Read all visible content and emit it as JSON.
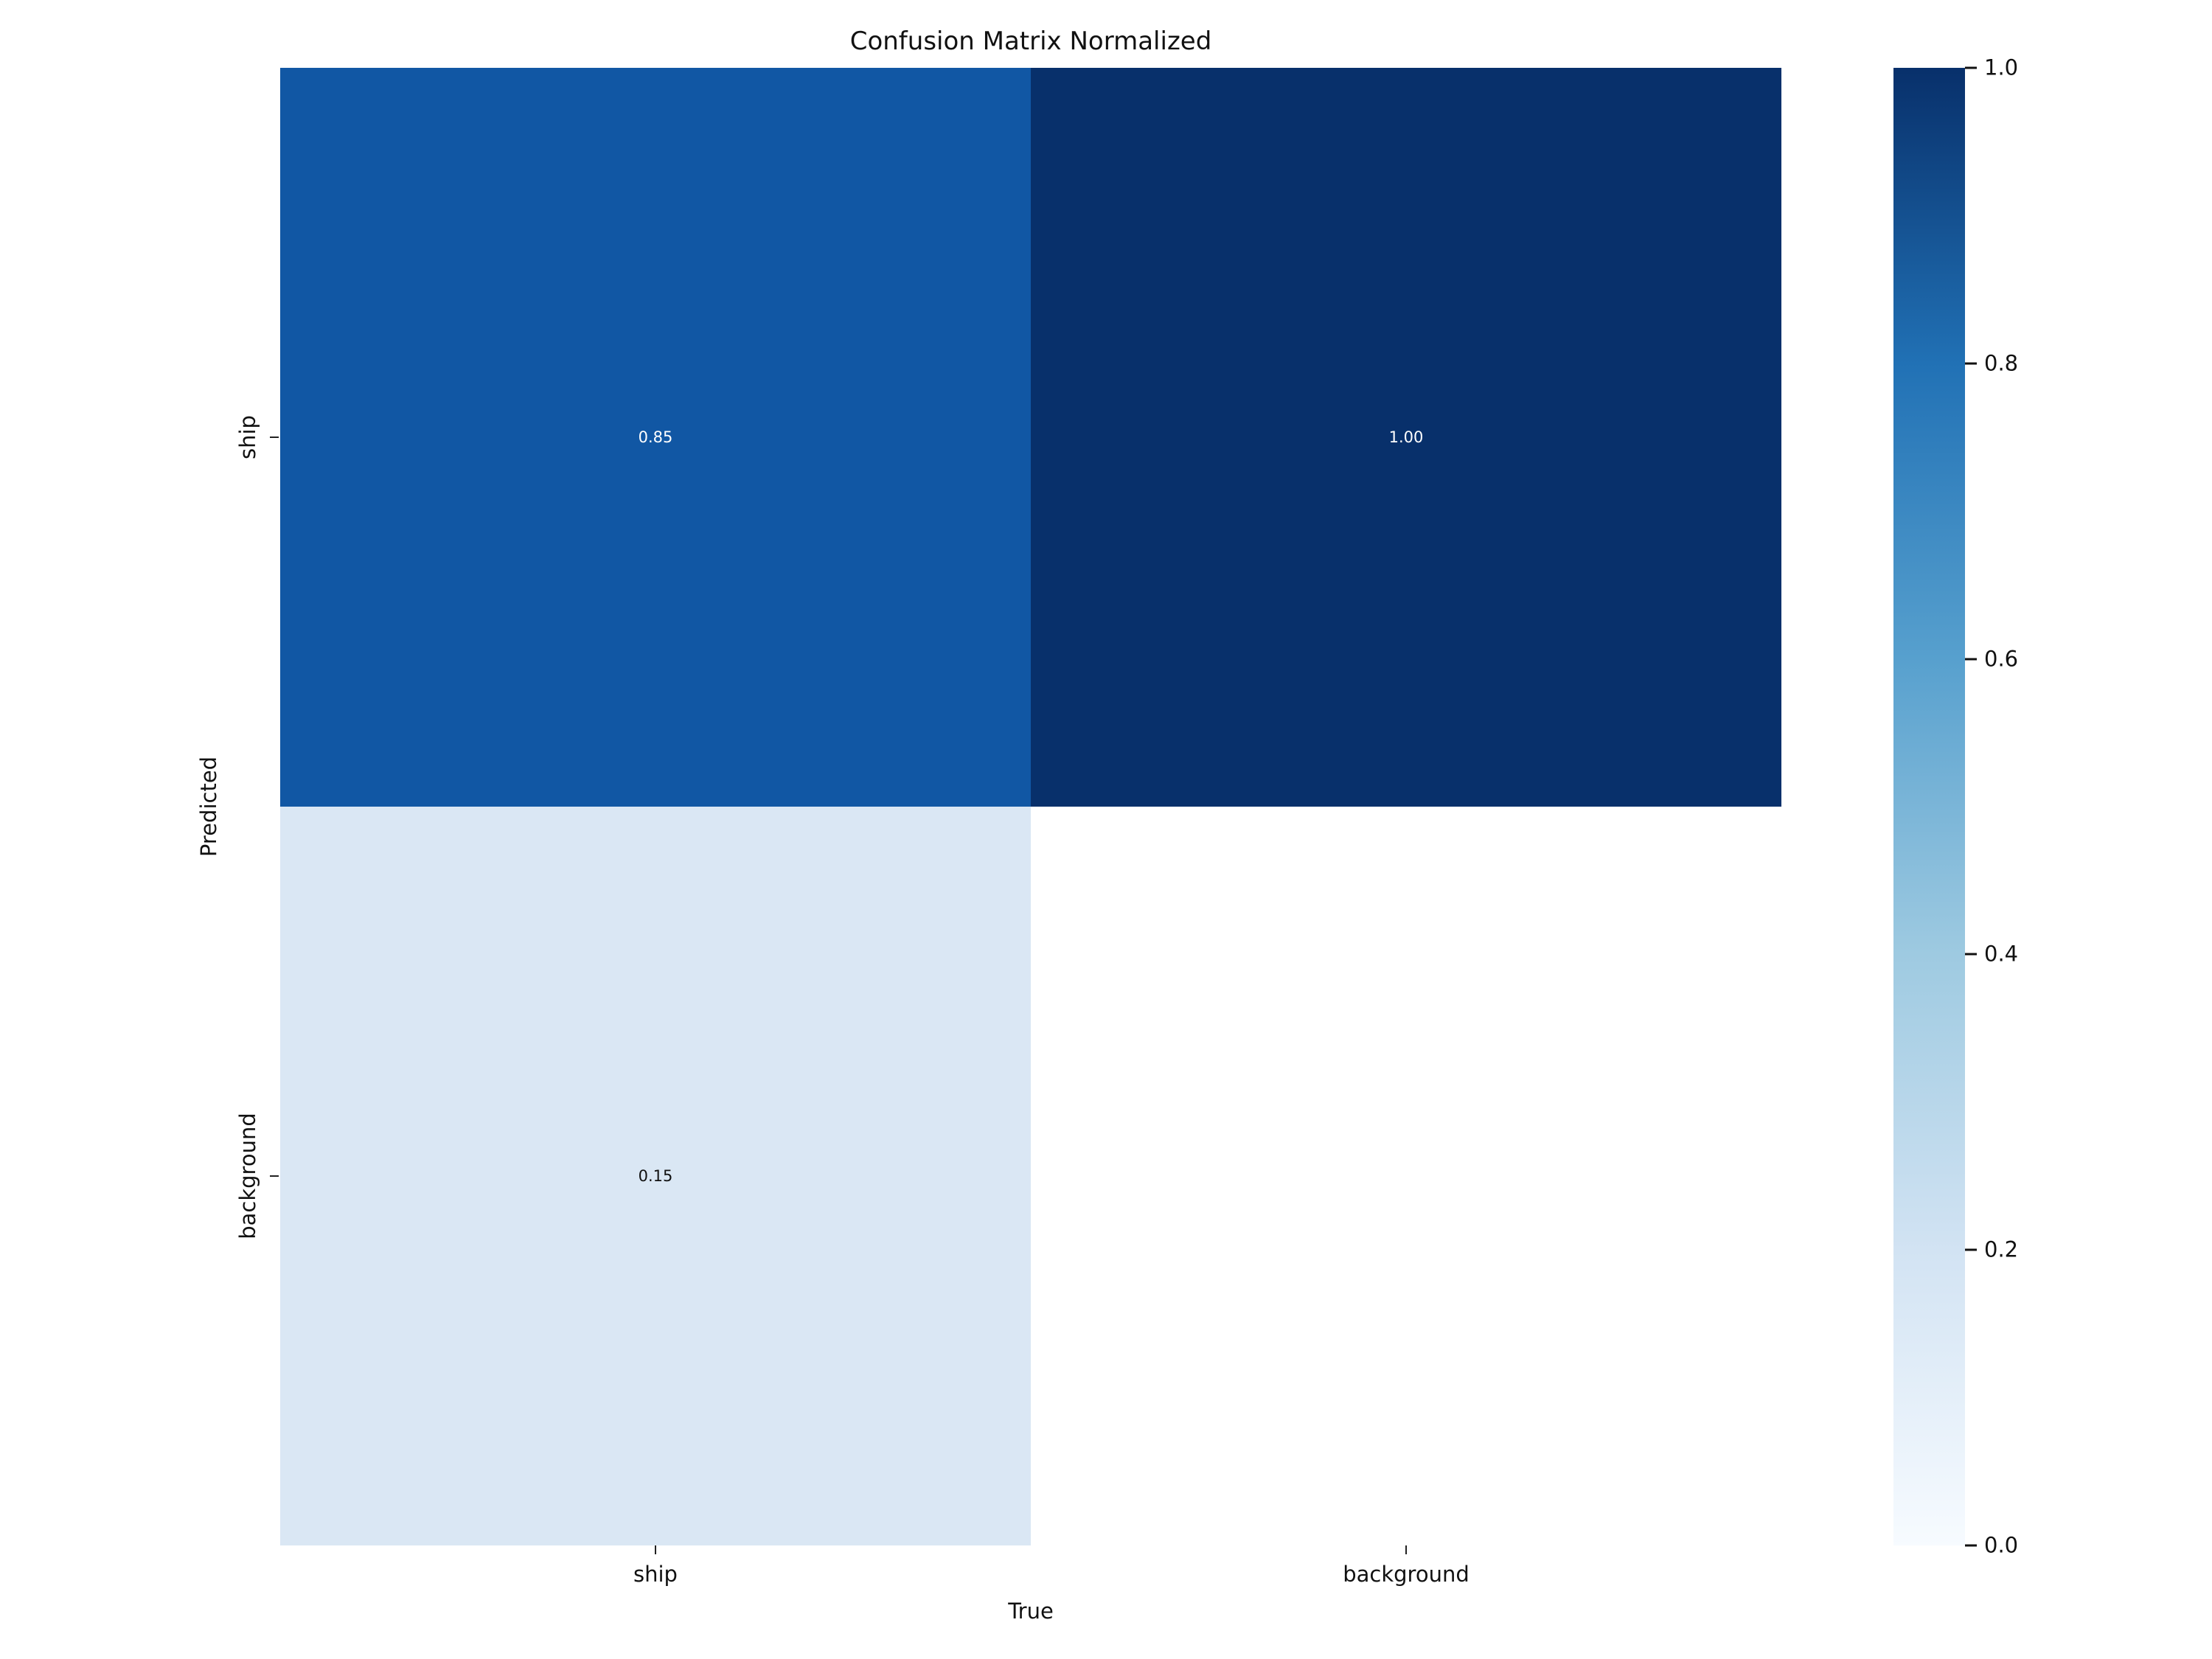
{
  "chart_data": {
    "type": "heatmap",
    "title": "Confusion Matrix Normalized",
    "xlabel": "True",
    "ylabel": "Predicted",
    "x_categories": [
      "ship",
      "background"
    ],
    "y_categories": [
      "ship",
      "background"
    ],
    "values": [
      [
        0.85,
        1.0
      ],
      [
        0.15,
        null
      ]
    ],
    "cells": [
      {
        "row": 0,
        "col": 0,
        "label": "0.85",
        "value": 0.85,
        "bg": "#1157a4",
        "text_color": "#ffffff"
      },
      {
        "row": 0,
        "col": 1,
        "label": "1.00",
        "value": 1.0,
        "bg": "#08306b",
        "text_color": "#ffffff"
      },
      {
        "row": 1,
        "col": 0,
        "label": "0.15",
        "value": 0.15,
        "bg": "#dae7f4",
        "text_color": "#111111"
      },
      {
        "row": 1,
        "col": 1,
        "label": "",
        "value": null,
        "bg": "#ffffff",
        "text_color": "#111111"
      }
    ],
    "colorbar": {
      "position": "right",
      "min": 0.0,
      "max": 1.0,
      "colormap": "Blues",
      "ticks": [
        "1.0",
        "0.8",
        "0.6",
        "0.4",
        "0.2",
        "0.0"
      ],
      "stops_bottom_to_top": [
        "#f7fbff",
        "#d2e3f3",
        "#9ecae1",
        "#57a0ce",
        "#2171b5",
        "#08306b"
      ]
    },
    "grid": false
  }
}
